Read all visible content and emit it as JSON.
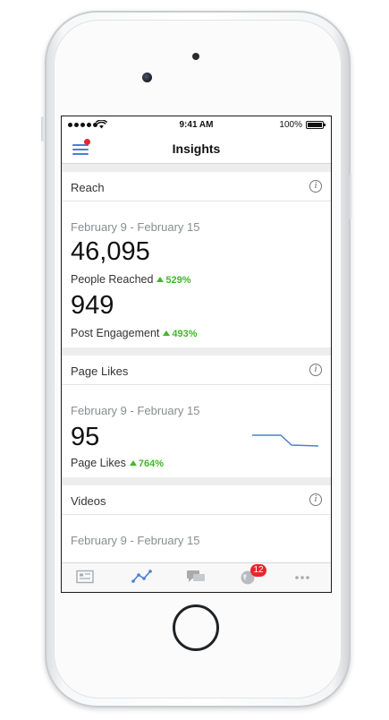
{
  "status_bar": {
    "time": "9:41 AM",
    "battery": "100%"
  },
  "nav": {
    "title": "Insights"
  },
  "cards": {
    "reach": {
      "title": "Reach",
      "date_range": "February 9 - February 15",
      "metrics": [
        {
          "value": "46,095",
          "label": "People Reached",
          "delta": "529%"
        },
        {
          "value": "949",
          "label": "Post Engagement",
          "delta": "493%"
        }
      ]
    },
    "page_likes": {
      "title": "Page Likes",
      "date_range": "February 9 - February 15",
      "value": "95",
      "label": "Page Likes",
      "delta": "764%"
    },
    "videos": {
      "title": "Videos",
      "date_range": "February 9 - February 15"
    }
  },
  "tabs": {
    "items": [
      "news-feed-icon",
      "insights-icon",
      "messages-icon",
      "notifications-globe-icon",
      "more-icon"
    ],
    "notifications_badge": "12"
  },
  "colors": {
    "accent": "#4a7fd4",
    "positive": "#42b72a",
    "badge": "#e9262c"
  }
}
